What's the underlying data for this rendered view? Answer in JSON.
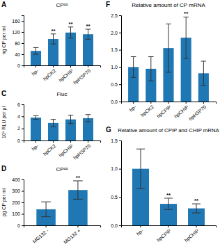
{
  "chart_data": [
    {
      "type": "bar",
      "title": "CPᵅᵅ",
      "ylabel": "ng CP per ml",
      "categories": [
        "hp-",
        "hpCK2",
        "hpCHIP",
        "hpHSP70"
      ],
      "values": [
        52,
        95,
        118,
        112
      ],
      "errors": [
        12,
        18,
        20,
        18
      ],
      "ylim": [
        0,
        180
      ],
      "yticks": [
        0,
        40,
        80,
        120,
        160
      ],
      "annotations": [
        {
          "text": "A"
        },
        {
          "text": "**",
          "x": "hpCK2"
        },
        {
          "text": "**",
          "x": "hpCHIP"
        },
        {
          "text": "**",
          "x": "hpHSP70"
        }
      ]
    },
    {
      "type": "bar",
      "title": "Fluc",
      "ylabel": "10⁶ RLU per μl",
      "categories": [
        "hp-",
        "hpCK2",
        "hpCHIP",
        "hpHSP70"
      ],
      "values": [
        3.8,
        2.9,
        3.5,
        3.7
      ],
      "errors": [
        0.3,
        0.6,
        0.7,
        0.6
      ],
      "ylim": [
        0,
        6
      ],
      "yticks": [
        0,
        2,
        4,
        6
      ],
      "annotations": [
        {
          "text": "C"
        }
      ]
    },
    {
      "type": "bar",
      "title": "CPᵅᵅ",
      "ylabel": "pg CP per ml",
      "categories": [
        "MG132 -",
        "MG132 +"
      ],
      "values": [
        140,
        308
      ],
      "errors": [
        65,
        80
      ],
      "ylim": [
        0,
        400
      ],
      "yticks": [
        0,
        100,
        200,
        300,
        400
      ],
      "annotations": [
        {
          "text": "D"
        },
        {
          "text": "**",
          "x": "MG132 +"
        }
      ]
    },
    {
      "type": "bar",
      "title": "Relative amount of CP mRNA",
      "categories": [
        "hp-",
        "hpCK2",
        "hpCPIP",
        "hpCHIP",
        "hpHSP70"
      ],
      "values": [
        1.0,
        0.95,
        1.55,
        1.85,
        0.82
      ],
      "errors": [
        0.3,
        0.35,
        0.7,
        0.6,
        0.35
      ],
      "ylim": [
        0,
        2.5
      ],
      "yticks": [
        {
          "value": 0,
          "label": "0.0"
        },
        0.5,
        {
          "value": 1.0,
          "label": "1.0"
        },
        1.5,
        {
          "value": 2.0,
          "label": "2.0"
        },
        2.5
      ],
      "annotations": [
        {
          "text": "F"
        },
        {
          "text": "**",
          "x": "hpCHIP"
        }
      ]
    },
    {
      "type": "bar",
      "title": "Relative amount of CPIP and CHIP mRNA",
      "categories": [
        "hp-",
        "hpCPIP",
        "hpCHIP"
      ],
      "values": [
        1.0,
        0.38,
        0.3
      ],
      "errors": [
        0.35,
        0.1,
        0.08
      ],
      "ylim": [
        0,
        1.5
      ],
      "yticks": [
        {
          "value": 0,
          "label": "0.0"
        },
        0.5,
        {
          "value": 1.0,
          "label": "1.0"
        },
        1.5
      ],
      "annotations": [
        {
          "text": "G"
        },
        {
          "text": "**",
          "x": "hpCPIP"
        },
        {
          "text": "**",
          "x": "hpCHIP"
        }
      ]
    }
  ]
}
